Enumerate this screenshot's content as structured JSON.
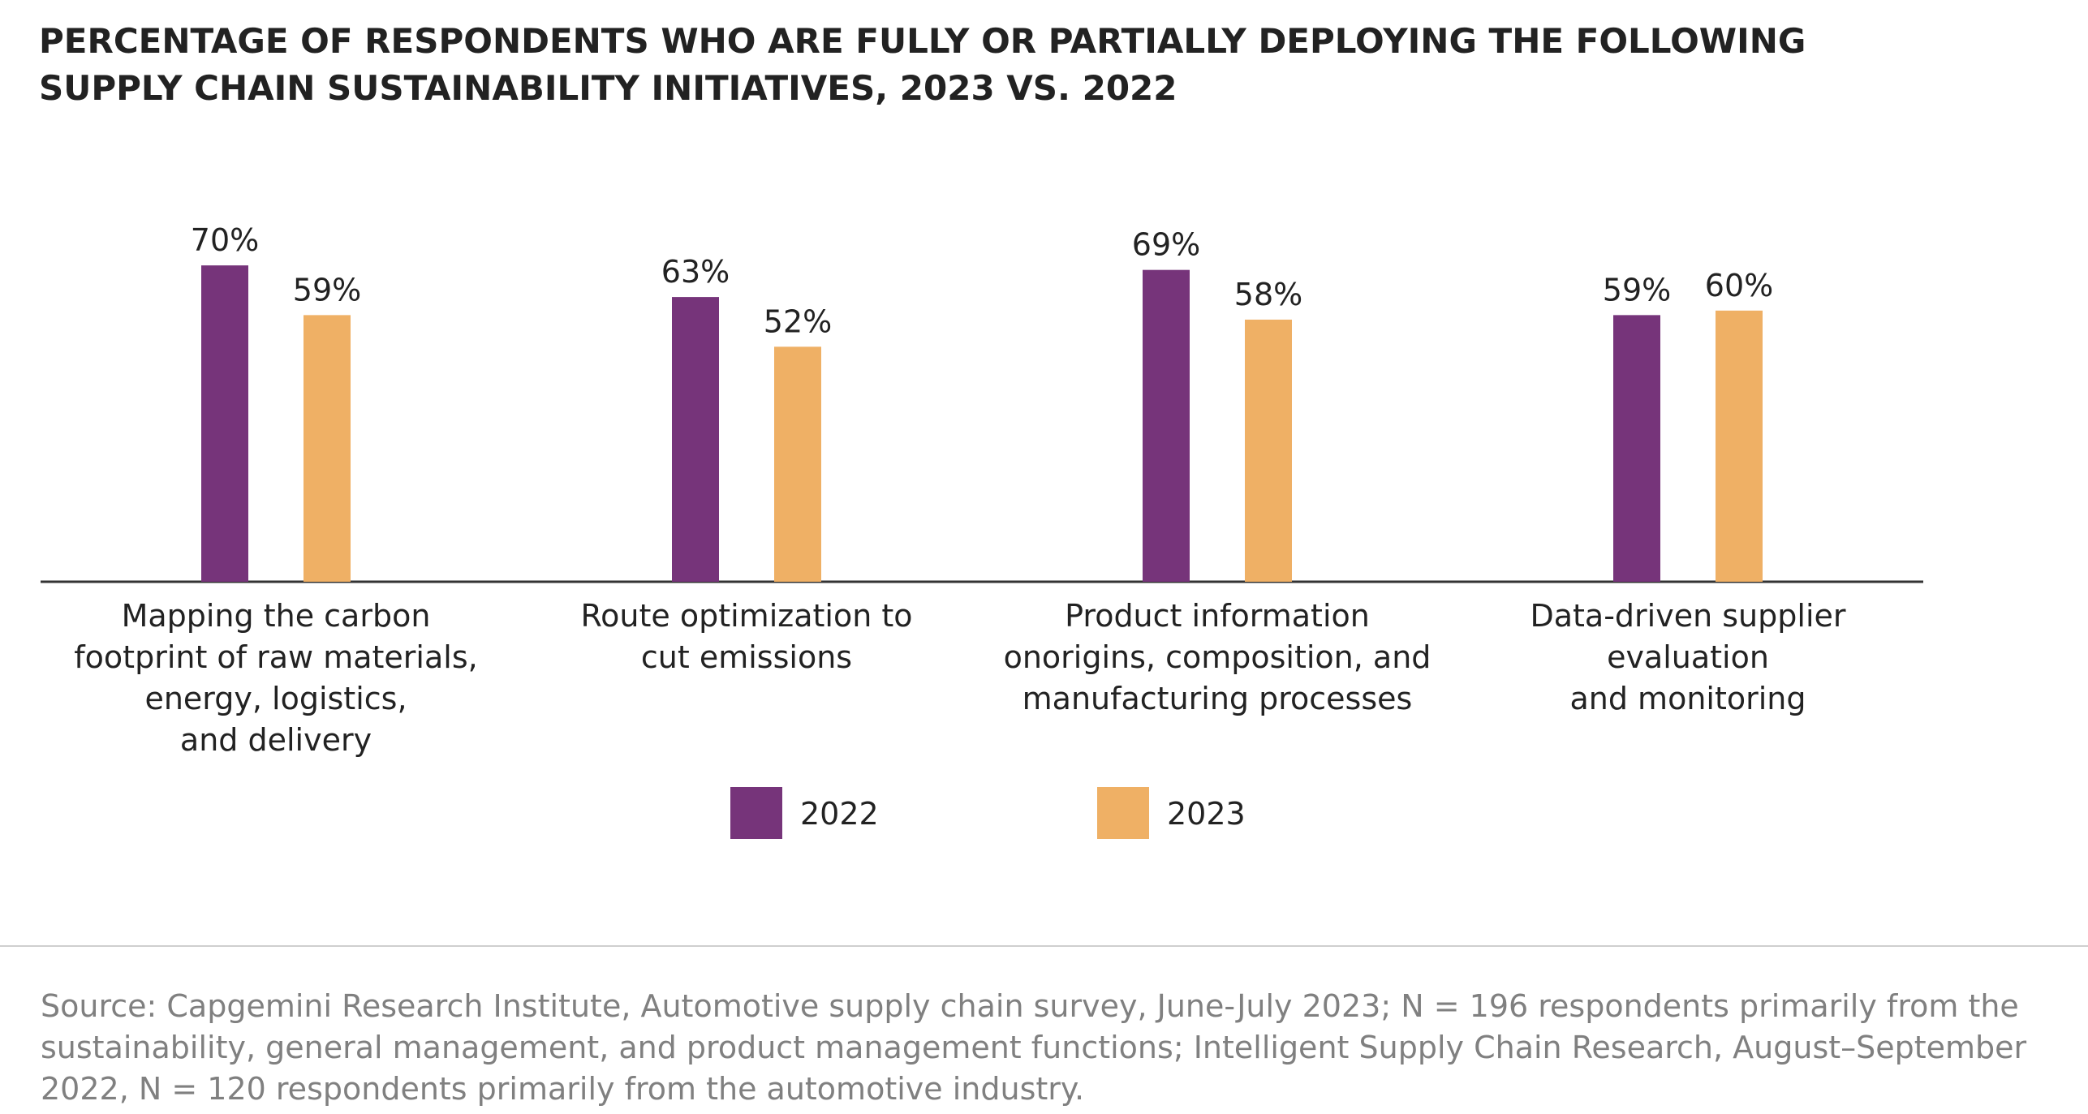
{
  "title": {
    "line1": "PERCENTAGE OF RESPONDENTS WHO ARE FULLY OR PARTIALLY DEPLOYING THE FOLLOWING",
    "line2": "SUPPLY CHAIN SUSTAINABILITY INITIATIVES, 2023 VS. 2022"
  },
  "chart_data": {
    "type": "bar",
    "categories": [
      [
        "Mapping the carbon",
        "footprint of raw materials,",
        "energy, logistics,",
        "and delivery"
      ],
      [
        "Route optimization to",
        "cut emissions"
      ],
      [
        "Product information",
        "onorigins, composition, and",
        "manufacturing processes"
      ],
      [
        "Data-driven supplier",
        "evaluation",
        "and monitoring"
      ]
    ],
    "series": [
      {
        "name": "2022",
        "values": [
          70,
          63,
          69,
          59
        ],
        "labels": [
          "70%",
          "63%",
          "69%",
          "59%"
        ],
        "color": "#76347a"
      },
      {
        "name": "2023",
        "values": [
          59,
          52,
          58,
          60
        ],
        "labels": [
          "59%",
          "52%",
          "58%",
          "60%"
        ],
        "color": "#efb065"
      }
    ],
    "ylim": [
      0,
      100
    ],
    "grid": false,
    "legend": "bottom-center"
  },
  "source": {
    "line1": "Source: Capgemini Research Institute, Automotive supply chain survey, June-July 2023; N = 196 respondents primarily from the",
    "line2": "sustainability, general management, and product management functions; Intelligent Supply Chain Research, August–September",
    "line3": "2022, N = 120 respondents primarily from the automotive industry."
  }
}
